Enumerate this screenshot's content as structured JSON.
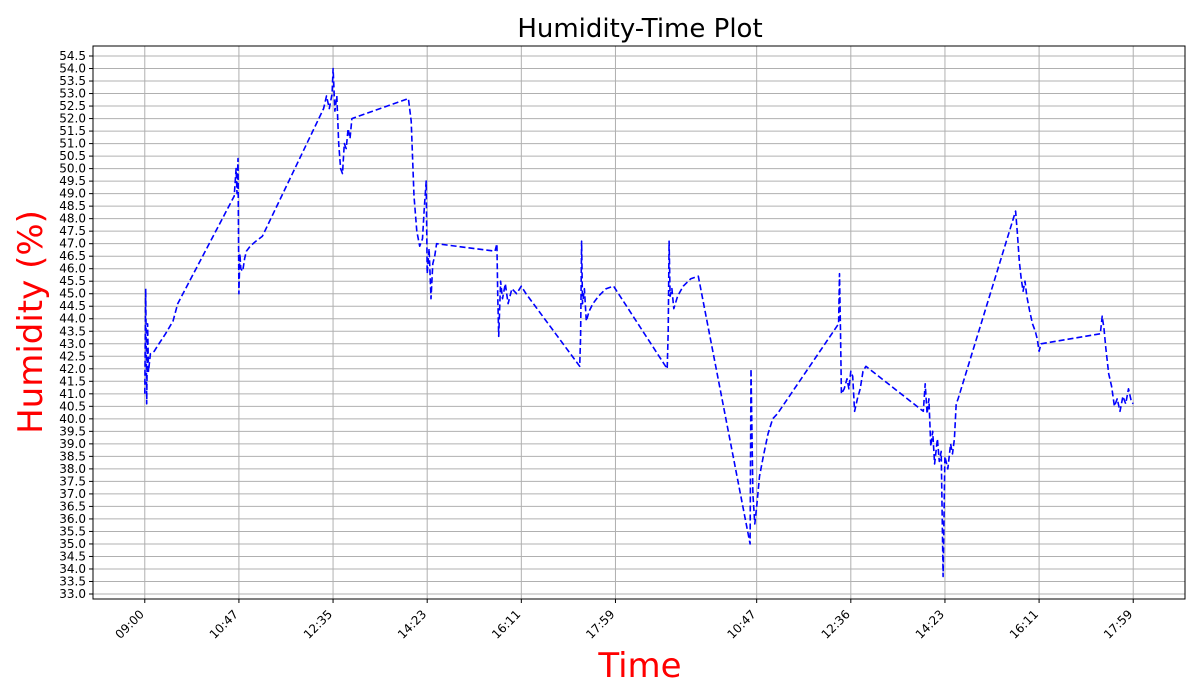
{
  "chart_data": {
    "type": "line",
    "title": "Humidity-Time Plot",
    "xlabel": "Time",
    "ylabel": "Humidity (%)",
    "label_color": "#ff0000",
    "series_color": "#0000ff",
    "line_style": "dashed",
    "grid": true,
    "ylim": [
      32.8,
      54.9
    ],
    "y_ticks": [
      "33.0",
      "33.5",
      "34.0",
      "34.5",
      "35.0",
      "35.5",
      "36.0",
      "36.5",
      "37.0",
      "37.5",
      "38.0",
      "38.5",
      "39.0",
      "39.5",
      "40.0",
      "40.5",
      "41.0",
      "41.5",
      "42.0",
      "42.5",
      "43.0",
      "43.5",
      "44.0",
      "44.5",
      "45.0",
      "45.5",
      "46.0",
      "46.5",
      "47.0",
      "47.5",
      "48.0",
      "48.5",
      "49.0",
      "49.5",
      "50.0",
      "50.5",
      "51.0",
      "51.5",
      "52.0",
      "52.5",
      "53.0",
      "53.5",
      "54.0",
      "54.5"
    ],
    "x_ticks": [
      {
        "label": "09:00",
        "x": 0
      },
      {
        "label": "10:47",
        "x": 1
      },
      {
        "label": "12:35",
        "x": 2
      },
      {
        "label": "14:23",
        "x": 3
      },
      {
        "label": "16:11",
        "x": 4
      },
      {
        "label": "17:59",
        "x": 5
      },
      {
        "label": "10:47",
        "x": 6.5
      },
      {
        "label": "12:36",
        "x": 7.5
      },
      {
        "label": "14:23",
        "x": 8.5
      },
      {
        "label": "16:11",
        "x": 9.5
      },
      {
        "label": "17:59",
        "x": 10.5
      }
    ],
    "xlim": [
      -0.55,
      11.05
    ],
    "series": [
      {
        "points": [
          [
            0.0,
            41.0
          ],
          [
            0.01,
            45.2
          ],
          [
            0.02,
            40.6
          ],
          [
            0.03,
            43.8
          ],
          [
            0.04,
            41.9
          ],
          [
            0.06,
            42.6
          ],
          [
            0.1,
            42.7
          ],
          [
            0.15,
            43.0
          ],
          [
            0.22,
            43.4
          ],
          [
            0.3,
            43.9
          ],
          [
            0.35,
            44.6
          ],
          [
            0.95,
            48.9
          ],
          [
            0.97,
            50.0
          ],
          [
            0.98,
            49.0
          ],
          [
            0.99,
            50.4
          ],
          [
            1.0,
            45.0
          ],
          [
            1.01,
            46.6
          ],
          [
            1.02,
            46.0
          ],
          [
            1.04,
            45.9
          ],
          [
            1.06,
            46.4
          ],
          [
            1.08,
            46.7
          ],
          [
            1.12,
            46.9
          ],
          [
            1.18,
            47.1
          ],
          [
            1.25,
            47.3
          ],
          [
            1.9,
            52.4
          ],
          [
            1.93,
            52.9
          ],
          [
            1.96,
            52.4
          ],
          [
            1.99,
            53.0
          ],
          [
            2.0,
            54.0
          ],
          [
            2.02,
            52.3
          ],
          [
            2.04,
            52.9
          ],
          [
            2.06,
            51.0
          ],
          [
            2.08,
            50.0
          ],
          [
            2.1,
            49.8
          ],
          [
            2.12,
            51.0
          ],
          [
            2.14,
            50.8
          ],
          [
            2.16,
            51.6
          ],
          [
            2.18,
            51.2
          ],
          [
            2.2,
            52.0
          ],
          [
            2.8,
            52.8
          ],
          [
            2.83,
            51.9
          ],
          [
            2.86,
            48.9
          ],
          [
            2.89,
            47.5
          ],
          [
            2.92,
            46.9
          ],
          [
            2.95,
            47.2
          ],
          [
            2.97,
            48.5
          ],
          [
            2.99,
            49.5
          ],
          [
            3.0,
            45.8
          ],
          [
            3.02,
            46.8
          ],
          [
            3.04,
            44.8
          ],
          [
            3.06,
            46.2
          ],
          [
            3.08,
            46.5
          ],
          [
            3.1,
            47.0
          ],
          [
            3.72,
            46.7
          ],
          [
            3.74,
            47.0
          ],
          [
            3.75,
            44.8
          ],
          [
            3.76,
            43.3
          ],
          [
            3.78,
            45.5
          ],
          [
            3.8,
            44.8
          ],
          [
            3.83,
            45.4
          ],
          [
            3.86,
            44.6
          ],
          [
            3.9,
            45.2
          ],
          [
            3.95,
            45.0
          ],
          [
            4.0,
            45.3
          ],
          [
            4.05,
            45.0
          ],
          [
            4.62,
            42.1
          ],
          [
            4.63,
            43.3
          ],
          [
            4.64,
            47.1
          ],
          [
            4.65,
            44.6
          ],
          [
            4.67,
            45.2
          ],
          [
            4.69,
            43.9
          ],
          [
            4.72,
            44.3
          ],
          [
            4.76,
            44.6
          ],
          [
            4.82,
            44.9
          ],
          [
            4.9,
            45.2
          ],
          [
            4.98,
            45.3
          ],
          [
            5.55,
            42.0
          ],
          [
            5.56,
            43.5
          ],
          [
            5.57,
            47.1
          ],
          [
            5.58,
            44.9
          ],
          [
            5.6,
            45.2
          ],
          [
            5.62,
            44.4
          ],
          [
            5.66,
            44.9
          ],
          [
            5.72,
            45.3
          ],
          [
            5.8,
            45.6
          ],
          [
            5.88,
            45.7
          ],
          [
            6.43,
            35.0
          ],
          [
            6.44,
            42.0
          ],
          [
            6.46,
            37.0
          ],
          [
            6.48,
            35.8
          ],
          [
            6.5,
            36.5
          ],
          [
            6.53,
            37.7
          ],
          [
            6.57,
            38.5
          ],
          [
            6.62,
            39.4
          ],
          [
            6.67,
            40.0
          ],
          [
            6.72,
            40.2
          ],
          [
            7.37,
            43.8
          ],
          [
            7.38,
            45.8
          ],
          [
            7.39,
            43.5
          ],
          [
            7.4,
            41.0
          ],
          [
            7.43,
            41.2
          ],
          [
            7.46,
            41.6
          ],
          [
            7.48,
            41.2
          ],
          [
            7.5,
            41.9
          ],
          [
            7.52,
            41.7
          ],
          [
            7.54,
            40.3
          ],
          [
            7.57,
            40.8
          ],
          [
            7.6,
            41.2
          ],
          [
            7.63,
            41.9
          ],
          [
            7.66,
            42.1
          ],
          [
            8.27,
            40.3
          ],
          [
            8.29,
            41.4
          ],
          [
            8.31,
            40.2
          ],
          [
            8.33,
            40.8
          ],
          [
            8.35,
            38.9
          ],
          [
            8.37,
            39.5
          ],
          [
            8.39,
            38.2
          ],
          [
            8.42,
            39.2
          ],
          [
            8.44,
            38.3
          ],
          [
            8.46,
            38.7
          ],
          [
            8.48,
            33.7
          ],
          [
            8.5,
            38.5
          ],
          [
            8.53,
            38.0
          ],
          [
            8.56,
            39.0
          ],
          [
            8.58,
            38.6
          ],
          [
            8.6,
            39.2
          ],
          [
            8.62,
            40.6
          ],
          [
            8.64,
            40.8
          ],
          [
            9.25,
            48.3
          ],
          [
            9.27,
            47.4
          ],
          [
            9.29,
            46.3
          ],
          [
            9.31,
            45.6
          ],
          [
            9.33,
            45.1
          ],
          [
            9.35,
            45.5
          ],
          [
            9.37,
            44.9
          ],
          [
            9.4,
            44.3
          ],
          [
            9.43,
            43.8
          ],
          [
            9.46,
            43.5
          ],
          [
            9.48,
            43.2
          ],
          [
            9.5,
            42.7
          ],
          [
            9.52,
            43.0
          ],
          [
            10.15,
            43.4
          ],
          [
            10.17,
            44.1
          ],
          [
            10.19,
            43.6
          ],
          [
            10.21,
            42.8
          ],
          [
            10.24,
            41.8
          ],
          [
            10.27,
            41.3
          ],
          [
            10.3,
            40.5
          ],
          [
            10.33,
            40.8
          ],
          [
            10.36,
            40.3
          ],
          [
            10.39,
            40.9
          ],
          [
            10.42,
            40.6
          ],
          [
            10.45,
            41.2
          ],
          [
            10.48,
            40.7
          ],
          [
            10.5,
            40.6
          ]
        ]
      }
    ]
  }
}
